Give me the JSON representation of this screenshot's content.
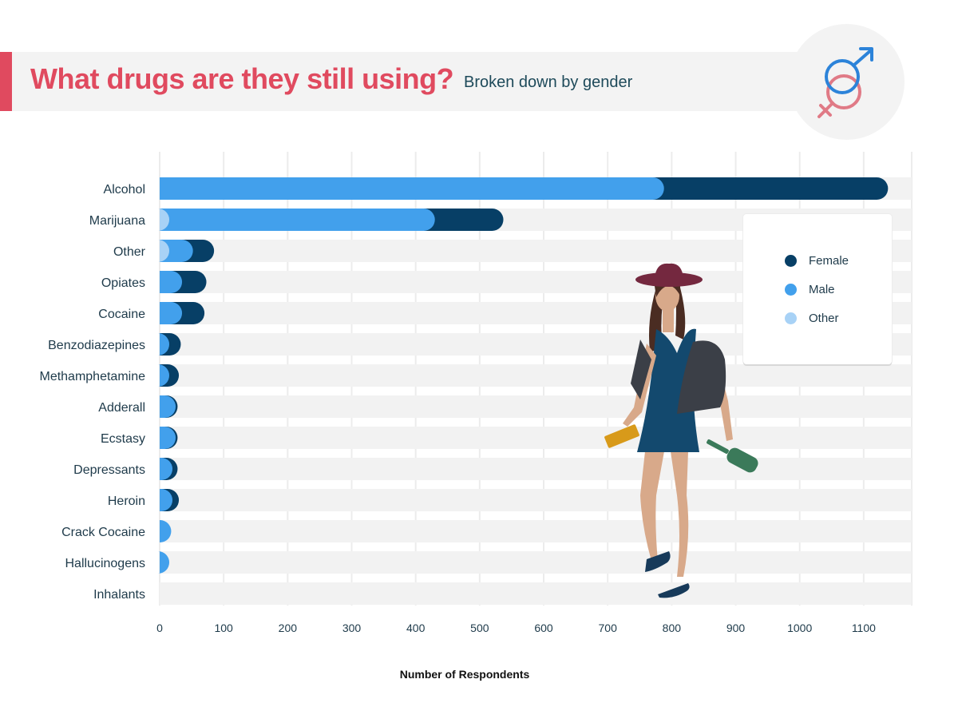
{
  "header": {
    "title": "What drugs are they still using?",
    "subtitle": "Broken down by gender",
    "icon": "gender-symbols-icon"
  },
  "legend": {
    "items": [
      {
        "label": "Female",
        "color": "#073f66"
      },
      {
        "label": "Male",
        "color": "#42a0ec"
      },
      {
        "label": "Other",
        "color": "#a8d2f6"
      }
    ]
  },
  "colors": {
    "female": "#073f66",
    "male": "#42a0ec",
    "other": "#a8d2f6",
    "track": "#f2f2f2",
    "title": "#e04a5f"
  },
  "chart_data": {
    "type": "bar",
    "orientation": "horizontal",
    "stacked": true,
    "categories": [
      "Alcohol",
      "Marijuana",
      "Other",
      "Opiates",
      "Cocaine",
      "Benzodiazepines",
      "Methamphetamine",
      "Adderall",
      "Ecstasy",
      "Depressants",
      "Heroin",
      "Crack Cocaine",
      "Hallucinogens",
      "Inhalants"
    ],
    "series": [
      {
        "name": "Other",
        "values": [
          0,
          15,
          15,
          0,
          0,
          0,
          0,
          0,
          0,
          0,
          0,
          0,
          0,
          0
        ]
      },
      {
        "name": "Male",
        "values": [
          788,
          415,
          37,
          35,
          35,
          15,
          15,
          25,
          25,
          20,
          20,
          18,
          15,
          0
        ]
      },
      {
        "name": "Female",
        "values": [
          350,
          107,
          33,
          38,
          35,
          18,
          15,
          3,
          3,
          8,
          10,
          0,
          0,
          0
        ]
      }
    ],
    "xticks": [
      0,
      100,
      200,
      300,
      400,
      500,
      600,
      700,
      800,
      900,
      1000,
      1100
    ],
    "xlim": [
      0,
      1175
    ],
    "xlabel": "Number of Respondents",
    "ylabel": "",
    "grid": true,
    "legend_position": "right"
  }
}
